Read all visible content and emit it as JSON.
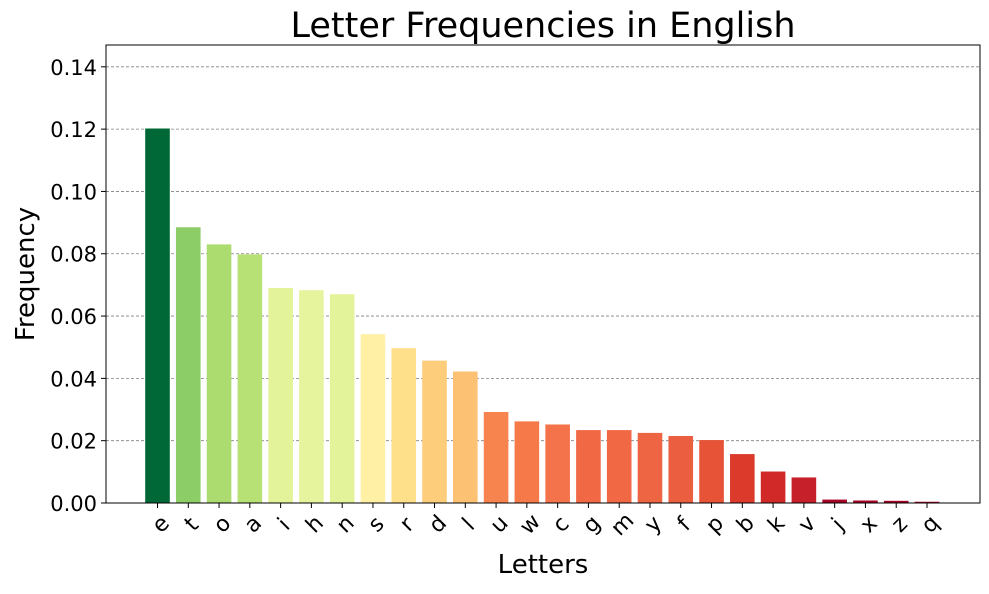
{
  "chart_data": {
    "type": "bar",
    "title": "Letter Frequencies in English",
    "xlabel": "Letters",
    "ylabel": "Frequency",
    "ylim": [
      0,
      0.147
    ],
    "yticks": [
      "0.00",
      "0.02",
      "0.04",
      "0.06",
      "0.08",
      "0.10",
      "0.12",
      "0.14"
    ],
    "grid": "y-dashed",
    "categories": [
      "e",
      "t",
      "o",
      "a",
      "i",
      "h",
      "n",
      "s",
      "r",
      "d",
      "l",
      "u",
      "w",
      "c",
      "g",
      "m",
      "y",
      "f",
      "p",
      "b",
      "k",
      "v",
      "j",
      "x",
      "z",
      "q"
    ],
    "values": [
      0.1202,
      0.0885,
      0.083,
      0.0798,
      0.069,
      0.0683,
      0.067,
      0.0542,
      0.0497,
      0.0457,
      0.0422,
      0.0292,
      0.0262,
      0.0252,
      0.0234,
      0.0234,
      0.0225,
      0.0215,
      0.0202,
      0.0157,
      0.0101,
      0.0082,
      0.0011,
      0.0008,
      0.0007,
      0.0004
    ],
    "colors": [
      "#006837",
      "#8ccd67",
      "#acdc6f",
      "#b7e075",
      "#e3f399",
      "#e6f49d",
      "#e3f399",
      "#fff0a6",
      "#fee08b",
      "#fdcd7b",
      "#fdc173",
      "#f7844e",
      "#f67a49",
      "#f4734a",
      "#f06944",
      "#f06944",
      "#ee6544",
      "#eb5e40",
      "#e75337",
      "#dc3a2b",
      "#d02927",
      "#c6202a",
      "#a70426",
      "#a50026",
      "#a50026",
      "#a50026"
    ]
  }
}
